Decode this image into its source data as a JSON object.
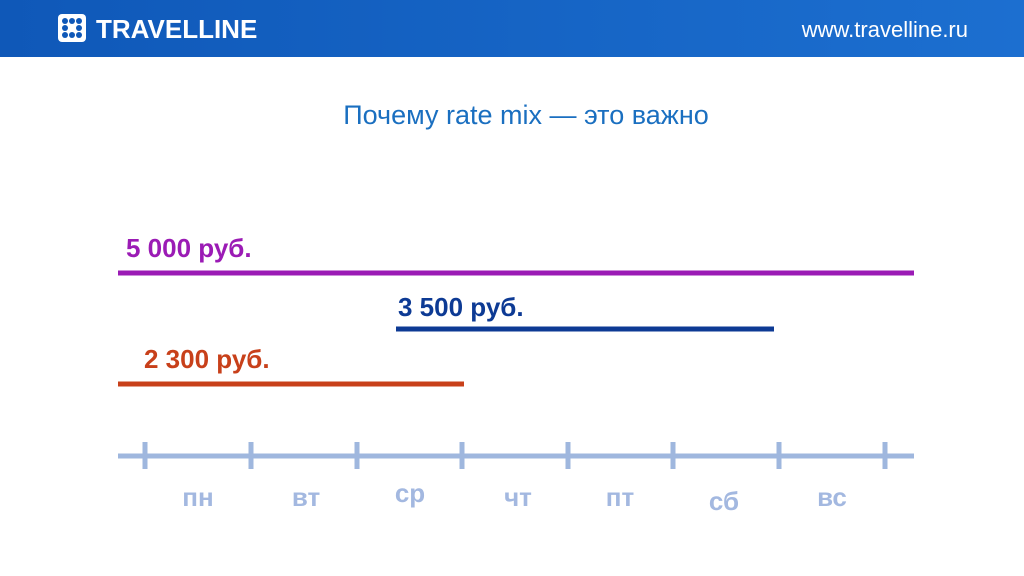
{
  "header": {
    "logo": "TRAVELLINE",
    "url": "www.travelline.ru"
  },
  "title": "Почему rate mix — это важно",
  "rates": [
    {
      "label": "5 000 руб."
    },
    {
      "label": "3 500 руб."
    },
    {
      "label": "2 300 руб."
    }
  ],
  "days": [
    "пн",
    "вт",
    "ср",
    "чт",
    "пт",
    "сб",
    "вс"
  ]
}
